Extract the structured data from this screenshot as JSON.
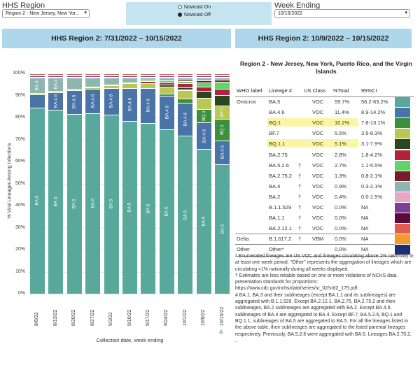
{
  "controls": {
    "region_label": "HHS Region",
    "region_value": "Region 2 - New Jersey, New Yor...",
    "nowcast_on": "Nowcast On",
    "nowcast_off": "Nowcast Off",
    "week_label": "Week Ending",
    "week_value": "10/15/2022",
    "dropdown_glyph": "▾"
  },
  "headers": {
    "left": "HHS Region 2: 7/31/2022 – 10/15/2022",
    "right": "HHS Region 2: 10/9/2022 – 10/15/2022"
  },
  "chart_data": {
    "type": "bar",
    "stacked": true,
    "ylabel": "% Viral Lineages Among Infections",
    "xlabel": "Collection date, week ending",
    "ylim": [
      0,
      100
    ],
    "yticks": [
      "0%",
      "10%",
      "20%",
      "30%",
      "40%",
      "50%",
      "60%",
      "70%",
      "80%",
      "90%",
      "100%"
    ],
    "grid": true,
    "categories": [
      "8/6/22",
      "8/13/22",
      "8/20/22",
      "8/27/22",
      "9/3/22",
      "9/10/22",
      "9/17/22",
      "9/24/22",
      "10/1/22",
      "10/8/22",
      "10/15/22"
    ],
    "series": [
      {
        "name": "BA.5",
        "color": "#58a89b",
        "values": [
          85,
          84,
          82,
          82,
          81,
          78,
          77,
          74,
          72,
          65,
          60
        ]
      },
      {
        "name": "BA.4.6",
        "color": "#4a73a8",
        "values": [
          6,
          8,
          11,
          11,
          12,
          15,
          16,
          15,
          15,
          12,
          11
        ]
      },
      {
        "name": "BQ.1",
        "color": "#3c8f3d",
        "values": [
          0,
          0,
          0,
          0,
          0,
          0,
          0,
          1,
          2,
          6,
          10
        ]
      },
      {
        "name": "BF.7",
        "color": "#bac753",
        "values": [
          0.5,
          0.5,
          0.5,
          0.5,
          1,
          2,
          2,
          3,
          4,
          5,
          6
        ]
      },
      {
        "name": "BQ.1.1",
        "color": "#2b4520",
        "values": [
          0,
          0,
          0,
          0,
          0,
          0,
          0,
          1,
          1,
          3,
          5
        ]
      },
      {
        "name": "BA.2.75",
        "color": "#b3213e",
        "values": [
          0,
          0,
          0,
          0.5,
          0.5,
          0.5,
          1,
          1,
          2,
          2,
          3
        ]
      },
      {
        "name": "BA.5.2.6",
        "color": "#61d466",
        "values": [
          0,
          0,
          0,
          0,
          0,
          0,
          0.5,
          1,
          1,
          2,
          3
        ]
      },
      {
        "name": "BA.2.75.2",
        "color": "#7a1c28",
        "values": [
          0,
          0,
          0,
          0,
          0,
          0,
          0,
          0,
          0.5,
          1,
          1
        ]
      },
      {
        "name": "BA.4",
        "color": "#8fb5b1",
        "values": [
          7,
          6,
          5,
          4,
          3,
          2,
          1,
          1,
          1,
          1,
          1
        ]
      },
      {
        "name": "BA.2",
        "color": "#e8a6c8",
        "values": [
          0.5,
          0.5,
          0.5,
          0.5,
          0.5,
          0.5,
          0.5,
          0.5,
          0.5,
          0.5,
          0.5
        ]
      },
      {
        "name": "B.1.1.529",
        "color": "#7d3f96",
        "values": [
          0.5,
          0.5,
          0.5,
          0.5,
          0.5,
          0.5,
          0.5,
          0.5,
          0.5,
          0.5,
          0.5
        ]
      },
      {
        "name": "BA.1.1",
        "color": "#5c0a3c",
        "values": [
          0.5,
          0.5,
          0.5,
          0.5,
          0.5,
          0.5,
          0.5,
          0.5,
          0.5,
          0.5,
          0.5
        ]
      },
      {
        "name": "BA.2.12.1",
        "color": "#e05c50",
        "values": [
          0.5,
          0.5,
          0.5,
          0.5,
          0.5,
          0.5,
          0.5,
          0.5,
          0.5,
          0.5,
          0.5
        ]
      }
    ],
    "bar_labels": [
      [
        "BA.5",
        "BA.4"
      ],
      [
        "BA.5",
        "BA.4.6",
        "BA.4"
      ],
      [
        "BA.5",
        "BA.4.6"
      ],
      [
        "BA.5",
        "BA.4.6"
      ],
      [
        "BA.5",
        "BA.4.6"
      ],
      [
        "BA.5",
        "BA.4.6"
      ],
      [
        "BA.5",
        "BA.4.6"
      ],
      [
        "BA.5",
        "BA.4.6"
      ],
      [
        "BA.5",
        "BA.4.6"
      ],
      [
        "BA.5",
        "BA.4.6",
        "BQ.1"
      ],
      [
        "BA.5",
        "BA.4.6",
        "BQ.1",
        "BF.7"
      ]
    ],
    "selected_marker": "▲"
  },
  "table": {
    "title": "Region 2 - New Jersey, New York, Puerto Rico, and the Virgin Islands",
    "columns": [
      "WHO label",
      "Lineage #",
      "US Class",
      "%Total",
      "95%CI"
    ],
    "rows": [
      {
        "who": "Omicron",
        "lineage": "BA.5",
        "dagger": "",
        "cls": "VOC",
        "pct": "59.7%",
        "ci": "56.2-63.2%",
        "color": "#58a89b",
        "hl": false
      },
      {
        "who": "",
        "lineage": "BA.4.6",
        "dagger": "",
        "cls": "VOC",
        "pct": "11.4%",
        "ci": "8.9-14.2%",
        "color": "#4a73a8",
        "hl": false
      },
      {
        "who": "",
        "lineage": "BQ.1",
        "dagger": "",
        "cls": "VOC",
        "pct": "10.2%",
        "ci": "7.8-13.1%",
        "color": "#3c8f3d",
        "hl": true
      },
      {
        "who": "",
        "lineage": "BF.7",
        "dagger": "",
        "cls": "VOC",
        "pct": "5.5%",
        "ci": "3.5-8.3%",
        "color": "#bac753",
        "hl": false
      },
      {
        "who": "",
        "lineage": "BQ.1.1",
        "dagger": "",
        "cls": "VOC",
        "pct": "5.1%",
        "ci": "3.1-7.9%",
        "color": "#2b4520",
        "hl": true
      },
      {
        "who": "",
        "lineage": "BA.2.75",
        "dagger": "",
        "cls": "VOC",
        "pct": "2.8%",
        "ci": "1.8-4.2%",
        "color": "#b3213e",
        "hl": false
      },
      {
        "who": "",
        "lineage": "BA.5.2.6",
        "dagger": "†",
        "cls": "VOC",
        "pct": "2.7%",
        "ci": "1.1-5.5%",
        "color": "#61d466",
        "hl": false
      },
      {
        "who": "",
        "lineage": "BA.2.75.2",
        "dagger": "†",
        "cls": "VOC",
        "pct": "1.3%",
        "ci": "0.8-2.1%",
        "color": "#7a1c28",
        "hl": false
      },
      {
        "who": "",
        "lineage": "BA.4",
        "dagger": "†",
        "cls": "VOC",
        "pct": "0.9%",
        "ci": "0.3-2.1%",
        "color": "#8fb5b1",
        "hl": false
      },
      {
        "who": "",
        "lineage": "BA.2",
        "dagger": "†",
        "cls": "VOC",
        "pct": "0.4%",
        "ci": "0.0-1.5%",
        "color": "#e8a6c8",
        "hl": false
      },
      {
        "who": "",
        "lineage": "B.1.1.529",
        "dagger": "†",
        "cls": "VOC",
        "pct": "0.0%",
        "ci": "NA",
        "color": "#7d3f96",
        "hl": false
      },
      {
        "who": "",
        "lineage": "BA.1.1",
        "dagger": "†",
        "cls": "VOC",
        "pct": "0.0%",
        "ci": "NA",
        "color": "#5c0a3c",
        "hl": false
      },
      {
        "who": "",
        "lineage": "BA.2.12.1",
        "dagger": "†",
        "cls": "VOC",
        "pct": "0.0%",
        "ci": "NA",
        "color": "#e05c50",
        "hl": false
      },
      {
        "who": "Delta",
        "lineage": "B.1.617.2",
        "dagger": "†",
        "cls": "VBM",
        "pct": "0.0%",
        "ci": "NA",
        "color": "#f39a2b",
        "hl": false
      },
      {
        "who": "Other",
        "lineage": "Other*",
        "dagger": "",
        "cls": "",
        "pct": "0.0%",
        "ci": "NA",
        "color": "#1d2f6e",
        "hl": false
      }
    ]
  },
  "notes": [
    "*     Enumerated lineages are US VOC and lineages circulating above 1% nationally in at least one week period. \"Other\" represents the aggregation of lineages which are circulating <1% nationally during all weeks displayed.",
    "†     Estimates are less reliable based on one or more violations of NCHS data presentation standards for proportions: https://www.cdc.gov/nchs/data/series/sr_02/sr02_175.pdf",
    "#     BA.1, BA.3 and their sublineages (except BA.1.1 and its sublineages) are aggregated with B.1.1.529. Except BA.2.12.1, BA.2.75, BA.2.75.2 and their sublineages, BA.2 sublineages are aggregated with BA.2. Except BA.4.6, sublineages of BA.4 are aggregated to BA.4. Except BF.7, BA.5.2.6, BQ.1 and BQ.1.1, sublineages of BA.5 are aggregated to BA.5. For all the lineages listed in the above table, their sublineages are aggregated to the listed parental lineages respectively. Previously, BA.5.2.6 were aggregated with BA.5. Lineages BA.2.75.2, .."
  ]
}
